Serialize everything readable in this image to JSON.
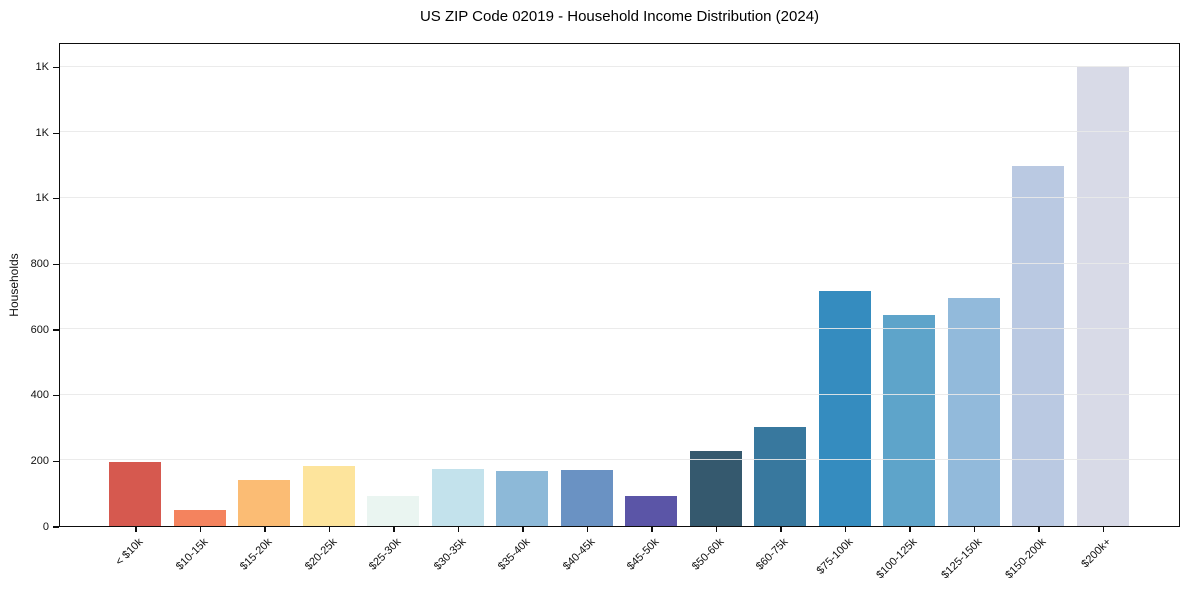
{
  "chart_data": {
    "type": "bar",
    "title": "US ZIP Code 02019 - Household Income Distribution (2024)",
    "xlabel": "",
    "ylabel": "Households",
    "categories": [
      "< $10k",
      "$10-15k",
      "$15-20k",
      "$20-25k",
      "$25-30k",
      "$30-35k",
      "$35-40k",
      "$40-45k",
      "$45-50k",
      "$50-60k",
      "$60-75k",
      "$75-100k",
      "$100-125k",
      "$125-150k",
      "$150-200k",
      "$200k+"
    ],
    "values": [
      195,
      49,
      140,
      183,
      91,
      174,
      168,
      171,
      92,
      229,
      303,
      717,
      644,
      696,
      1098,
      1400
    ],
    "bar_colors": [
      "#d6594f",
      "#f4835e",
      "#fbbc74",
      "#fde49c",
      "#eaf5f1",
      "#c3e2ec",
      "#8db9d8",
      "#6a92c3",
      "#5b55a7",
      "#35596e",
      "#38789e",
      "#358cbf",
      "#5ea4ca",
      "#92badb",
      "#bac9e2",
      "#d8dae7"
    ],
    "ylim": [
      0,
      1470
    ],
    "yticks": {
      "values": [
        0,
        200,
        400,
        600,
        800,
        1000,
        1200,
        1400
      ],
      "labels": [
        "0",
        "200",
        "400",
        "600",
        "800",
        "1K",
        "1K",
        "1K"
      ]
    },
    "grid": "horizontal",
    "legend": "none",
    "spine_color": "#0d0d0d",
    "gridline_color": "#e9e9e9",
    "x_tick_rotation_deg": 45
  }
}
